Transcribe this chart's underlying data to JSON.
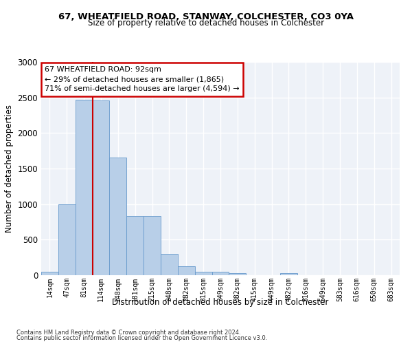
{
  "title1": "67, WHEATFIELD ROAD, STANWAY, COLCHESTER, CO3 0YA",
  "title2": "Size of property relative to detached houses in Colchester",
  "xlabel": "Distribution of detached houses by size in Colchester",
  "ylabel": "Number of detached properties",
  "bin_labels": [
    "14sqm",
    "47sqm",
    "81sqm",
    "114sqm",
    "148sqm",
    "181sqm",
    "215sqm",
    "248sqm",
    "282sqm",
    "315sqm",
    "349sqm",
    "382sqm",
    "415sqm",
    "449sqm",
    "482sqm",
    "516sqm",
    "549sqm",
    "583sqm",
    "616sqm",
    "650sqm",
    "683sqm"
  ],
  "bar_values": [
    50,
    1000,
    2470,
    2460,
    1650,
    830,
    830,
    300,
    130,
    50,
    45,
    30,
    0,
    0,
    30,
    0,
    0,
    0,
    0,
    0,
    0
  ],
  "bar_color": "#b8cfe8",
  "bar_edge_color": "#6699cc",
  "red_line_bin": 2,
  "annotation_text": "67 WHEATFIELD ROAD: 92sqm\n← 29% of detached houses are smaller (1,865)\n71% of semi-detached houses are larger (4,594) →",
  "annotation_box_color": "#ffffff",
  "annotation_box_edge": "#cc0000",
  "ylim": [
    0,
    3000
  ],
  "yticks": [
    0,
    500,
    1000,
    1500,
    2000,
    2500,
    3000
  ],
  "footnote1": "Contains HM Land Registry data © Crown copyright and database right 2024.",
  "footnote2": "Contains public sector information licensed under the Open Government Licence v3.0.",
  "background_color": "#eef2f8"
}
